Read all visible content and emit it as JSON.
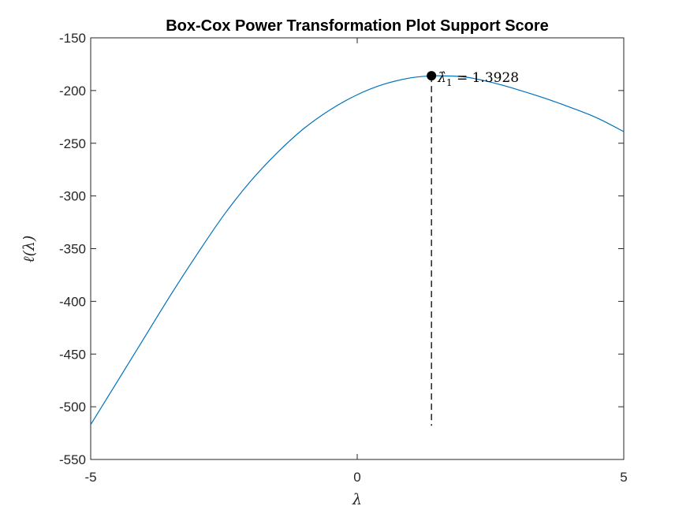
{
  "chart_data": {
    "type": "line",
    "title": "Box-Cox Power Transformation Plot Support Score",
    "xlabel": "λ",
    "ylabel": "ℓ(λ)",
    "xlim": [
      -5,
      5
    ],
    "ylim": [
      -550,
      -150
    ],
    "xticks": [
      -5,
      0,
      5
    ],
    "yticks": [
      -150,
      -200,
      -250,
      -300,
      -350,
      -400,
      -450,
      -500,
      -550
    ],
    "xtick_labels": [
      "-5",
      "0",
      "5"
    ],
    "ytick_labels": [
      "-150",
      "-200",
      "-250",
      "-300",
      "-350",
      "-400",
      "-450",
      "-500",
      "-550"
    ],
    "grid": false,
    "series": [
      {
        "color": "#0072bd",
        "x": [
          -5,
          -4.5,
          -4,
          -3.5,
          -3,
          -2.5,
          -2,
          -1.5,
          -1,
          -0.5,
          0,
          0.5,
          1,
          1.3928,
          1.5,
          2,
          2.5,
          3,
          3.5,
          4,
          4.5,
          5
        ],
        "y": [
          -517,
          -476,
          -435,
          -394,
          -355,
          -318,
          -286,
          -259,
          -236,
          -218,
          -204,
          -194,
          -188,
          -186,
          -186,
          -187,
          -192,
          -199,
          -207,
          -216,
          -226,
          -239
        ]
      }
    ],
    "marker": {
      "x": 1.3928,
      "y": -186,
      "label_symbol": "λ̂",
      "label_subscript": "1",
      "label_text": " = 1.3928",
      "dashed_line_to_y": -518
    }
  }
}
